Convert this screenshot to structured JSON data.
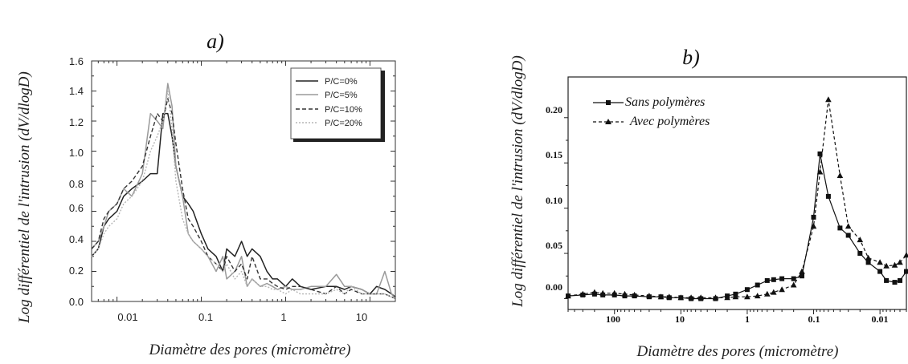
{
  "chart_data": [
    {
      "type": "line",
      "panel_label": "a)",
      "xlabel": "Diamètre des pores (micromètre)",
      "ylabel": "Log différentiel de l'intrusion (dV/dlogD)",
      "x_scale": "log",
      "xlim": [
        0.005,
        20
      ],
      "ylim": [
        0,
        1.6
      ],
      "xticks": [
        "0.01",
        "0.1",
        "1",
        "10"
      ],
      "yticks": [
        "0.0",
        "0.2",
        "0.4",
        "0.6",
        "0.8",
        "1.0",
        "1.2",
        "1.4",
        "1.6"
      ],
      "legend_position": "top-right",
      "colors": {
        "series1": "#222222",
        "series2": "#9a9a9a",
        "series3": "#333333",
        "series4": "#b5b5b5"
      },
      "x": [
        0.005,
        0.006,
        0.007,
        0.008,
        0.01,
        0.012,
        0.015,
        0.02,
        0.025,
        0.03,
        0.035,
        0.04,
        0.045,
        0.05,
        0.06,
        0.07,
        0.08,
        0.1,
        0.12,
        0.15,
        0.18,
        0.2,
        0.25,
        0.3,
        0.35,
        0.4,
        0.5,
        0.6,
        0.7,
        0.8,
        1,
        1.2,
        1.5,
        2,
        3,
        4,
        5,
        6,
        8,
        10,
        12,
        15,
        18,
        20
      ],
      "series": [
        {
          "name": "P/C=0%",
          "values": [
            0.3,
            0.35,
            0.5,
            0.55,
            0.6,
            0.7,
            0.75,
            0.8,
            0.85,
            0.85,
            1.25,
            1.25,
            1.1,
            0.9,
            0.7,
            0.65,
            0.6,
            0.45,
            0.35,
            0.3,
            0.2,
            0.35,
            0.3,
            0.4,
            0.3,
            0.35,
            0.3,
            0.2,
            0.15,
            0.15,
            0.1,
            0.15,
            0.1,
            0.08,
            0.1,
            0.1,
            0.08,
            0.1,
            0.08,
            0.05,
            0.1,
            0.08,
            0.05,
            0.03
          ]
        },
        {
          "name": "P/C=5%",
          "values": [
            0.35,
            0.4,
            0.5,
            0.6,
            0.65,
            0.75,
            0.7,
            0.85,
            1.25,
            1.2,
            1.15,
            1.45,
            1.3,
            0.9,
            0.7,
            0.45,
            0.4,
            0.35,
            0.3,
            0.2,
            0.3,
            0.15,
            0.2,
            0.3,
            0.1,
            0.15,
            0.1,
            0.12,
            0.1,
            0.08,
            0.1,
            0.08,
            0.08,
            0.1,
            0.1,
            0.18,
            0.1,
            0.1,
            0.08,
            0.05,
            0.05,
            0.2,
            0.05,
            0.02
          ]
        },
        {
          "name": "P/C=10%",
          "values": [
            0.35,
            0.4,
            0.55,
            0.6,
            0.65,
            0.75,
            0.8,
            0.9,
            1.1,
            1.25,
            1.2,
            1.35,
            1.25,
            1.05,
            0.75,
            0.55,
            0.5,
            0.4,
            0.3,
            0.25,
            0.2,
            0.3,
            0.2,
            0.25,
            0.15,
            0.3,
            0.15,
            0.15,
            0.12,
            0.1,
            0.08,
            0.1,
            0.1,
            0.08,
            0.05,
            0.1,
            0.05,
            0.08,
            0.05,
            0.05,
            0.05,
            0.05,
            0.03,
            0.02
          ]
        },
        {
          "name": "P/C=20%",
          "values": [
            0.3,
            0.35,
            0.45,
            0.5,
            0.55,
            0.65,
            0.7,
            0.8,
            1.0,
            1.1,
            1.2,
            1.4,
            1.15,
            0.8,
            0.55,
            0.45,
            0.4,
            0.35,
            0.3,
            0.25,
            0.2,
            0.25,
            0.15,
            0.2,
            0.1,
            0.15,
            0.1,
            0.1,
            0.08,
            0.08,
            0.05,
            0.08,
            0.05,
            0.05,
            0.05,
            0.08,
            0.05,
            0.1,
            0.05,
            0.05,
            0.05,
            0.05,
            0.03,
            0.02
          ]
        }
      ]
    },
    {
      "type": "line",
      "panel_label": "b)",
      "xlabel": "Diamètre des pores (micromètre)",
      "ylabel": "Log différentiel de l'intrusion (dV/dlogD)",
      "x_scale": "log",
      "x_reversed": true,
      "xlim": [
        500,
        0.004
      ],
      "ylim": [
        -0.012,
        0.245
      ],
      "xticks": [
        "100",
        "10",
        "1",
        "0.1",
        "0.01"
      ],
      "yticks": [
        "0.00",
        "0.05",
        "0.10",
        "0.15",
        "0.20"
      ],
      "legend_position": "top-left",
      "colors": {
        "series1": "#111111",
        "series2": "#111111"
      },
      "series": [
        {
          "name": "Sans polymères",
          "marker": "square",
          "x": [
            500,
            300,
            200,
            150,
            100,
            70,
            50,
            30,
            20,
            15,
            10,
            7,
            5,
            3,
            2,
            1.5,
            1,
            0.7,
            0.5,
            0.4,
            0.3,
            0.2,
            0.15,
            0.1,
            0.08,
            0.06,
            0.04,
            0.03,
            0.02,
            0.015,
            0.01,
            0.008,
            0.006,
            0.005,
            0.004
          ],
          "values": [
            0.003,
            0.004,
            0.005,
            0.004,
            0.004,
            0.003,
            0.003,
            0.002,
            0.002,
            0.001,
            0.001,
            0.0,
            0.0,
            0.0,
            0.003,
            0.005,
            0.01,
            0.015,
            0.02,
            0.021,
            0.022,
            0.022,
            0.025,
            0.09,
            0.16,
            0.113,
            0.078,
            0.07,
            0.05,
            0.04,
            0.03,
            0.02,
            0.018,
            0.02,
            0.03
          ]
        },
        {
          "name": "Avec polymères",
          "marker": "triangle",
          "x": [
            500,
            300,
            200,
            150,
            100,
            70,
            50,
            30,
            20,
            15,
            10,
            7,
            5,
            3,
            2,
            1.5,
            1,
            0.7,
            0.5,
            0.4,
            0.3,
            0.2,
            0.15,
            0.1,
            0.08,
            0.06,
            0.04,
            0.03,
            0.02,
            0.015,
            0.01,
            0.008,
            0.006,
            0.005,
            0.004
          ],
          "values": [
            0.003,
            0.005,
            0.007,
            0.006,
            0.006,
            0.005,
            0.004,
            0.003,
            0.002,
            0.002,
            0.001,
            0.001,
            0.001,
            0.001,
            0.001,
            0.002,
            0.002,
            0.003,
            0.005,
            0.007,
            0.01,
            0.015,
            0.03,
            0.08,
            0.14,
            0.22,
            0.136,
            0.08,
            0.065,
            0.045,
            0.04,
            0.036,
            0.037,
            0.04,
            0.048
          ]
        }
      ]
    }
  ]
}
